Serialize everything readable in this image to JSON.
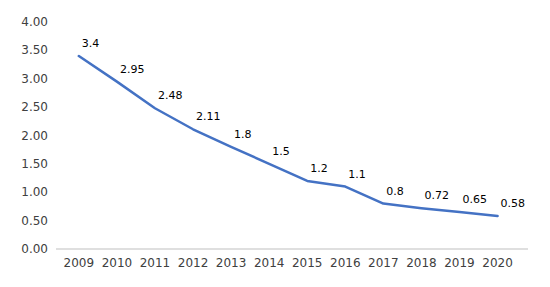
{
  "chart_data": {
    "type": "line",
    "x": [
      2009,
      2010,
      2011,
      2012,
      2013,
      2014,
      2015,
      2016,
      2017,
      2018,
      2019,
      2020
    ],
    "values": [
      3.4,
      2.95,
      2.48,
      2.11,
      1.8,
      1.5,
      1.2,
      1.1,
      0.8,
      0.72,
      0.65,
      0.58
    ],
    "color": "#4472c4",
    "data_labels": true,
    "xlim": [
      2008.4,
      2020.8
    ],
    "xticks": [
      2009,
      2010,
      2011,
      2012,
      2013,
      2014,
      2015,
      2016,
      2017,
      2018,
      2019,
      2020
    ],
    "ylim": [
      0,
      4.0
    ],
    "yticks": [
      {
        "value": 0.0,
        "label": "0.00"
      },
      {
        "value": 0.5,
        "label": "0.50"
      },
      {
        "value": 1.0,
        "label": "1.00"
      },
      {
        "value": 1.5,
        "label": "1.50"
      },
      {
        "value": 2.0,
        "label": "2.00"
      },
      {
        "value": 2.5,
        "label": "2.50"
      },
      {
        "value": 3.0,
        "label": "3.00"
      },
      {
        "value": 3.5,
        "label": "3.50"
      },
      {
        "value": 4.0,
        "label": "4.00"
      }
    ],
    "grid": false
  }
}
